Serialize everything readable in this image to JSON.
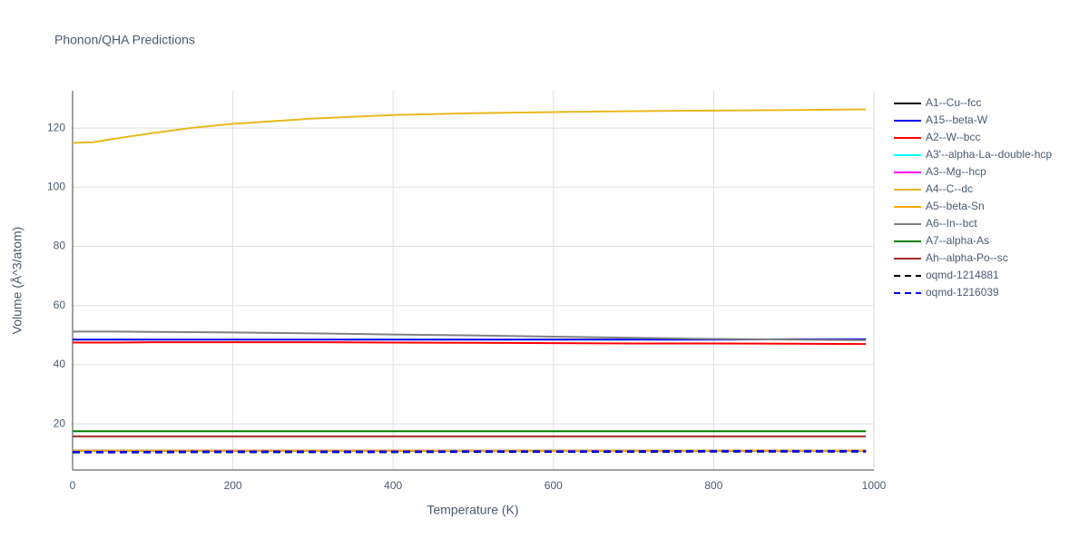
{
  "chart_data": {
    "type": "line",
    "title": "Phonon/QHA Predictions",
    "x_label": "Temperature (K)",
    "y_label": "Volume (Å^3/atom)",
    "x": [
      0,
      25,
      50,
      100,
      150,
      200,
      300,
      400,
      500,
      600,
      700,
      800,
      900,
      990
    ],
    "xlim": [
      0,
      1000
    ],
    "xticks": [
      0,
      200,
      400,
      600,
      800,
      1000
    ],
    "ylim": [
      4.4,
      132.6
    ],
    "yticks": [
      20,
      40,
      60,
      80,
      100,
      120
    ],
    "grid": true,
    "legend": "right",
    "series": [
      {
        "name": "A1--Cu--fcc",
        "color": "#000000",
        "dash": false,
        "values": [
          10.9,
          10.9,
          10.9,
          10.9,
          10.9,
          10.9,
          10.9,
          10.9,
          10.9,
          10.9,
          10.9,
          10.9,
          10.9,
          10.9
        ]
      },
      {
        "name": "A15--beta-W",
        "color": "#0000ff",
        "dash": false,
        "values": [
          48.5,
          48.5,
          48.5,
          48.5,
          48.5,
          48.5,
          48.5,
          48.5,
          48.5,
          48.5,
          48.5,
          48.5,
          48.6,
          48.6
        ]
      },
      {
        "name": "A2--W--bcc",
        "color": "#ff0000",
        "dash": false,
        "values": [
          47.5,
          47.5,
          47.5,
          47.6,
          47.6,
          47.6,
          47.6,
          47.5,
          47.4,
          47.3,
          47.2,
          47.2,
          47.1,
          47.0
        ]
      },
      {
        "name": "A3'--alpha-La--double-hcp",
        "color": "#00ffff",
        "dash": false,
        "values": [
          null,
          null,
          null,
          null,
          null,
          null,
          null,
          null,
          null,
          null,
          null,
          null,
          null,
          null
        ]
      },
      {
        "name": "A3--Mg--hcp",
        "color": "#ff00ff",
        "dash": false,
        "values": [
          null,
          null,
          null,
          null,
          null,
          null,
          null,
          null,
          null,
          null,
          null,
          null,
          null,
          null
        ]
      },
      {
        "name": "A4--C--dc",
        "color": "#e8b81e",
        "dash": false,
        "values": [
          115.0,
          115.2,
          116.3,
          118.3,
          120.1,
          121.4,
          123.2,
          124.4,
          125.0,
          125.4,
          125.7,
          125.9,
          126.1,
          126.3
        ]
      },
      {
        "name": "A5--beta-Sn",
        "color": "#ffa500",
        "dash": false,
        "values": [
          10.9,
          10.9,
          10.9,
          10.9,
          10.9,
          10.9,
          10.9,
          10.9,
          10.9,
          10.9,
          10.9,
          11.0,
          11.0,
          11.0
        ]
      },
      {
        "name": "A6--In--bct",
        "color": "#808080",
        "dash": false,
        "values": [
          51.2,
          51.2,
          51.2,
          51.1,
          51.0,
          50.9,
          50.6,
          50.2,
          49.9,
          49.5,
          49.1,
          48.7,
          48.5,
          48.3
        ]
      },
      {
        "name": "A7--alpha-As",
        "color": "#008000",
        "dash": false,
        "values": [
          17.5,
          17.5,
          17.5,
          17.5,
          17.5,
          17.5,
          17.5,
          17.5,
          17.5,
          17.5,
          17.5,
          17.5,
          17.5,
          17.5
        ]
      },
      {
        "name": "Ah--alpha-Po--sc",
        "color": "#a52a2a",
        "dash": false,
        "values": [
          15.8,
          15.8,
          15.8,
          15.8,
          15.8,
          15.8,
          15.8,
          15.8,
          15.8,
          15.8,
          15.8,
          15.8,
          15.8,
          15.8
        ]
      },
      {
        "name": "oqmd-1214881",
        "color": "#000000",
        "dash": true,
        "values": [
          10.4,
          10.4,
          10.4,
          10.4,
          10.5,
          10.5,
          10.5,
          10.5,
          10.6,
          10.6,
          10.6,
          10.7,
          10.7,
          10.7
        ]
      },
      {
        "name": "oqmd-1216039",
        "color": "#0000ff",
        "dash": true,
        "values": [
          10.5,
          10.5,
          10.5,
          10.5,
          10.6,
          10.6,
          10.6,
          10.6,
          10.7,
          10.7,
          10.7,
          10.8,
          10.8,
          10.8
        ]
      }
    ]
  }
}
